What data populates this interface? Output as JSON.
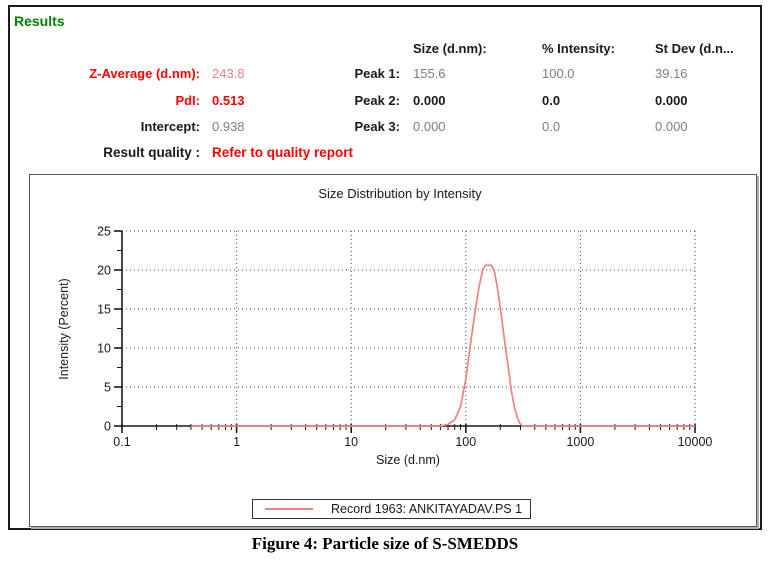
{
  "header": {
    "results_label": "Results"
  },
  "summary": {
    "rows": [
      {
        "label": "Z-Average (d.nm):",
        "value": "243.8"
      },
      {
        "label": "PdI:",
        "value": "0.513"
      },
      {
        "label": "Intercept:",
        "value": "0.938"
      }
    ],
    "result_quality_label": "Result quality :",
    "result_quality_value": "Refer to quality report"
  },
  "peaks_table": {
    "columns": [
      "Size (d.nm):",
      "% Intensity:",
      "St Dev (d.n..."
    ],
    "rows": [
      {
        "label": "Peak 1:",
        "size": "155.6",
        "intensity": "100.0",
        "stdev": "39.16"
      },
      {
        "label": "Peak 2:",
        "size": "0.000",
        "intensity": "0.0",
        "stdev": "0.000"
      },
      {
        "label": "Peak 3:",
        "size": "0.000",
        "intensity": "0.0",
        "stdev": "0.000"
      }
    ]
  },
  "chart_data": {
    "type": "line",
    "title": "Size Distribution by Intensity",
    "xlabel": "Size (d.nm)",
    "ylabel": "Intensity (Percent)",
    "x_scale": "log",
    "xlim": [
      0.1,
      10000
    ],
    "ylim": [
      0,
      25
    ],
    "x_ticks": [
      0.1,
      1,
      10,
      100,
      1000,
      10000
    ],
    "y_ticks": [
      0,
      5,
      10,
      15,
      20,
      25
    ],
    "y_minor_step": 2.5,
    "grid": "dotted",
    "legend_position": "bottom-center",
    "series": [
      {
        "name": "Record 1963: ANKITAYADAV.PS 1",
        "color": "#f28080",
        "points": [
          [
            0.4,
            0
          ],
          [
            60,
            0
          ],
          [
            70,
            0.2
          ],
          [
            80,
            0.8
          ],
          [
            90,
            2.5
          ],
          [
            100,
            6.0
          ],
          [
            110,
            10.5
          ],
          [
            120,
            14.5
          ],
          [
            130,
            17.8
          ],
          [
            140,
            19.9
          ],
          [
            148,
            20.6
          ],
          [
            168,
            20.6
          ],
          [
            178,
            19.8
          ],
          [
            190,
            17.5
          ],
          [
            205,
            14.0
          ],
          [
            220,
            10.5
          ],
          [
            235,
            7.5
          ],
          [
            250,
            4.5
          ],
          [
            265,
            2.5
          ],
          [
            280,
            1.2
          ],
          [
            295,
            0.4
          ],
          [
            310,
            0
          ],
          [
            10000,
            0
          ]
        ]
      }
    ]
  },
  "figure_caption": "Figure 4: Particle size of S-SMEDDS",
  "colors": {
    "results_green": "#008000",
    "label_red": "#ff0000",
    "curve_salmon": "#f28080",
    "value_gray": "#7d7d7d",
    "text_black": "#1a1a1a"
  }
}
